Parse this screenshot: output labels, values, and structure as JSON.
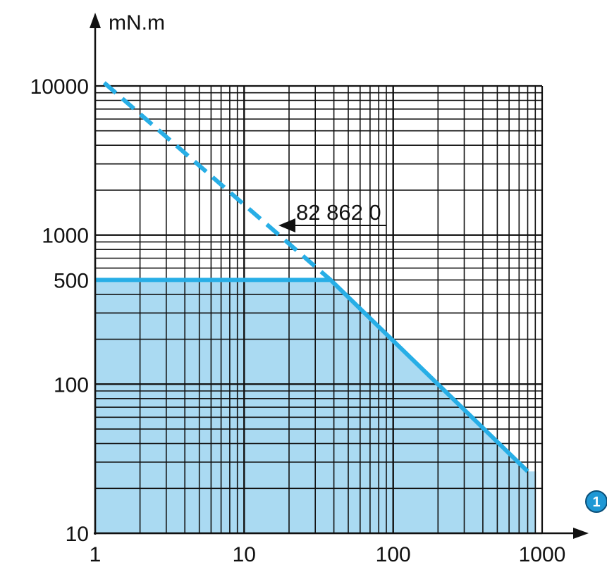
{
  "chart_data": {
    "type": "line",
    "x_scale": "log",
    "y_scale": "log",
    "xlim": [
      1,
      1000
    ],
    "ylim": [
      10,
      10000
    ],
    "x_ticks": [
      "1",
      "10",
      "100",
      "1000"
    ],
    "y_ticks": [
      "10",
      "100",
      "500",
      "1000",
      "10000"
    ],
    "y_unit": "mN.m",
    "grid": true,
    "series": [
      {
        "style": "dashed",
        "points": [
          [
            1.15,
            10500
          ],
          [
            38,
            500
          ]
        ]
      },
      {
        "style": "solid",
        "points": [
          [
            1,
            500
          ],
          [
            38,
            500
          ],
          [
            800,
            26
          ]
        ],
        "fill_below": true
      }
    ],
    "annotation": {
      "text": "82 862 0",
      "underlined": "82 862",
      "points_to": [
        17,
        1000
      ]
    },
    "x_axis_badge": "1",
    "colors": {
      "line": "#27aee6",
      "fill": "#aadaf2",
      "grid": "#111111",
      "badge": "#1f98d5"
    }
  }
}
